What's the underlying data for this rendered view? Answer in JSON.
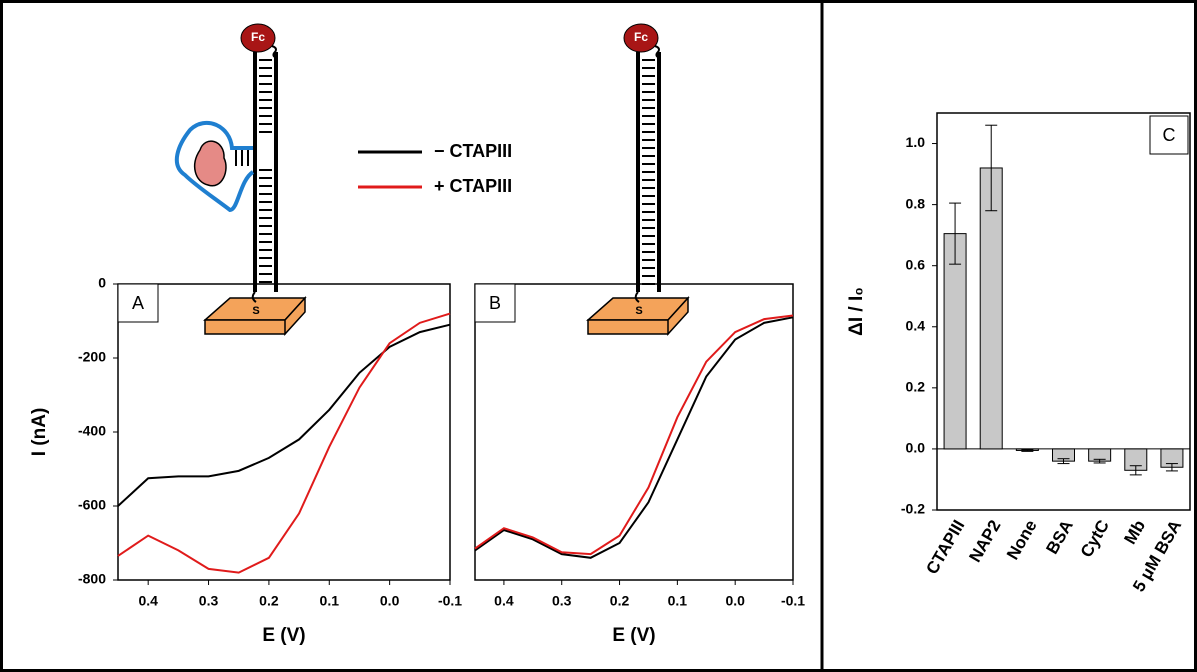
{
  "diagram": {
    "probe_label": "Fc",
    "surface_label": "S"
  },
  "chart_data": [
    {
      "type": "line",
      "panel_label": "A",
      "x_label": "E (V)",
      "y_label": "I (nA)",
      "x": [
        0.45,
        0.4,
        0.35,
        0.3,
        0.25,
        0.2,
        0.15,
        0.1,
        0.05,
        0.0,
        -0.05,
        -0.1
      ],
      "series": [
        {
          "name": "− CTAPIII",
          "color": "#000000",
          "values": [
            -600,
            -525,
            -520,
            -520,
            -505,
            -470,
            -420,
            -340,
            -240,
            -170,
            -130,
            -110
          ]
        },
        {
          "name": "+ CTAPIII",
          "color": "#e01b1b",
          "values": [
            -735,
            -680,
            -720,
            -770,
            -780,
            -740,
            -620,
            -440,
            -280,
            -160,
            -105,
            -80
          ]
        }
      ],
      "xlim": [
        0.45,
        -0.1
      ],
      "xticks": [
        0.4,
        0.3,
        0.2,
        0.1,
        {
          "value": 0,
          "label": "0.0"
        },
        -0.1
      ],
      "ylim": [
        -800,
        0
      ],
      "yticks": [
        0,
        -200,
        -400,
        -600,
        -800
      ]
    },
    {
      "type": "line",
      "panel_label": "B",
      "x_label": "E (V)",
      "x": [
        0.45,
        0.4,
        0.35,
        0.3,
        0.25,
        0.2,
        0.15,
        0.1,
        0.05,
        0.0,
        -0.05,
        -0.1
      ],
      "series": [
        {
          "color": "#000000",
          "values": [
            -720,
            -665,
            -690,
            -730,
            -740,
            -700,
            -590,
            -420,
            -250,
            -150,
            -105,
            -90
          ]
        },
        {
          "color": "#e01b1b",
          "values": [
            -715,
            -660,
            -685,
            -725,
            -730,
            -680,
            -550,
            -360,
            -210,
            -130,
            -95,
            -85
          ]
        }
      ],
      "xlim": [
        0.45,
        -0.1
      ],
      "xticks": [
        0.4,
        0.3,
        0.2,
        0.1,
        {
          "value": 0,
          "label": "0.0"
        },
        -0.1
      ],
      "ylim": [
        -800,
        0
      ]
    },
    {
      "type": "bar",
      "panel_label": "C",
      "y_label": "ΔI / I₀",
      "color": "#c8c8c8",
      "categories": [
        "CTAPIII",
        "NAP2",
        "None",
        "BSA",
        "CytC",
        "Mb",
        "5 μM BSA"
      ],
      "values": [
        0.705,
        0.92,
        -0.005,
        -0.04,
        -0.04,
        -0.07,
        -0.06
      ],
      "errors": [
        0.1,
        0.14,
        0.003,
        0.008,
        0.006,
        0.015,
        0.012
      ],
      "ylim": [
        -0.2,
        1.1
      ],
      "yticks": [
        -0.2,
        {
          "value": 0,
          "label": "0.0"
        },
        0.2,
        0.4,
        0.6,
        0.8,
        {
          "value": 1,
          "label": "1.0"
        }
      ]
    }
  ]
}
